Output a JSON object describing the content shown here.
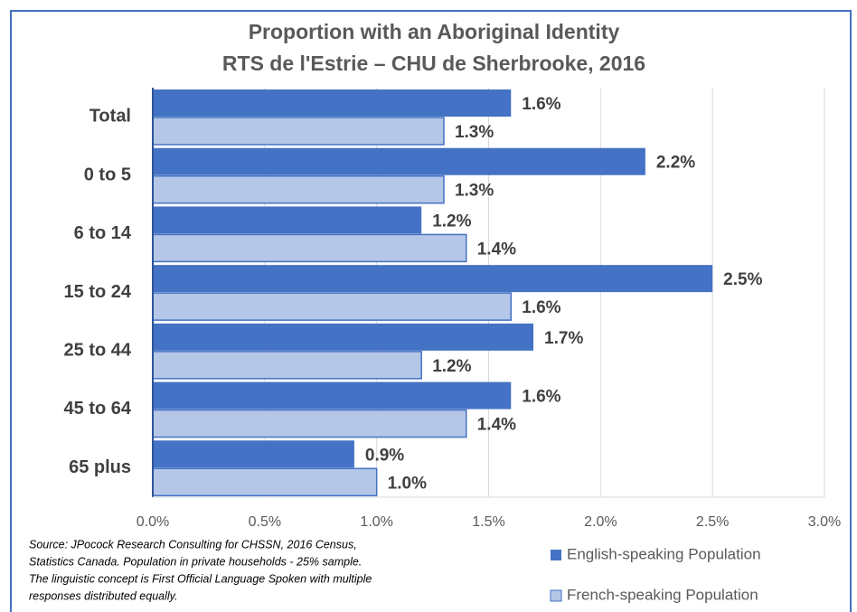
{
  "chart_data": {
    "type": "bar",
    "orientation": "horizontal",
    "title": [
      "Proportion with an Aboriginal Identity",
      "RTS de l'Estrie – CHU de Sherbrooke, 2016"
    ],
    "categories": [
      "Total",
      "0 to 5",
      "6 to 14",
      "15 to 24",
      "25 to 44",
      "45 to 64",
      "65 plus"
    ],
    "series": [
      {
        "name": "English-speaking Population",
        "color": "#4472c4",
        "values": [
          1.6,
          2.2,
          1.2,
          2.5,
          1.7,
          1.6,
          0.9
        ],
        "value_labels": [
          "1.6%",
          "2.2%",
          "1.2%",
          "2.5%",
          "1.7%",
          "1.6%",
          "0.9%"
        ]
      },
      {
        "name": "French-speaking Population",
        "color": "#b4c7e7",
        "values": [
          1.3,
          1.3,
          1.4,
          1.6,
          1.2,
          1.4,
          1.0
        ],
        "value_labels": [
          "1.3%",
          "1.3%",
          "1.4%",
          "1.6%",
          "1.2%",
          "1.4%",
          "1.0%"
        ]
      }
    ],
    "xlim": [
      0,
      3
    ],
    "xticks": [
      {
        "value": 0,
        "label": "0.0%"
      },
      {
        "value": 0.5,
        "label": "0.5%"
      },
      {
        "value": 1,
        "label": "1.0%"
      },
      {
        "value": 1.5,
        "label": "1.5%"
      },
      {
        "value": 2,
        "label": "2.0%"
      },
      {
        "value": 2.5,
        "label": "2.5%"
      },
      {
        "value": 3,
        "label": "3.0%"
      }
    ],
    "grid": true,
    "legend": "bottom-right",
    "source": [
      "Source: JPocock Research Consulting for CHSSN, 2016 Census,",
      "Statistics Canada. Population in private households - 25% sample.",
      "The linguistic concept is First Official Language Spoken with multiple",
      "responses distributed equally."
    ]
  }
}
